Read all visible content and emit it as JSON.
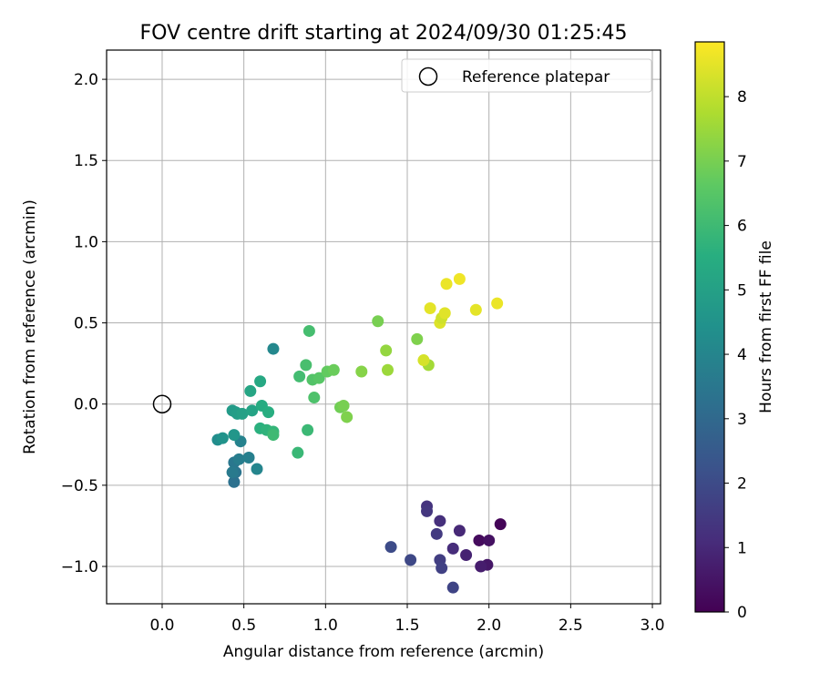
{
  "chart_data": {
    "type": "scatter",
    "title": "FOV centre drift starting at 2024/09/30 01:25:45",
    "xlabel": "Angular distance from reference (arcmin)",
    "ylabel": "Rotation from reference (arcmin)",
    "xlim": [
      -0.34,
      3.05
    ],
    "ylim": [
      -1.23,
      2.18
    ],
    "xticks": [
      "0.0",
      "0.5",
      "1.0",
      "1.5",
      "2.0",
      "2.5",
      "3.0"
    ],
    "yticks": [
      "−1.0",
      "−0.5",
      "0.0",
      "0.5",
      "1.0",
      "1.5",
      "2.0"
    ],
    "grid": true,
    "legend": {
      "placement": "top-right",
      "entries": [
        "Reference platepar"
      ]
    },
    "reference_point": {
      "x": 0.0,
      "y": 0.0,
      "label": "Reference platepar",
      "marker": "open-circle"
    },
    "colorbar": {
      "label": "Hours from first FF file",
      "colormap": "viridis",
      "range": [
        0,
        8.85
      ],
      "ticks": [
        "0",
        "1",
        "2",
        "3",
        "4",
        "5",
        "6",
        "7",
        "8"
      ]
    },
    "series": [
      {
        "points": [
          {
            "x": 2.07,
            "y": -0.74,
            "c": 0.1
          },
          {
            "x": 1.94,
            "y": -0.84,
            "c": 0.25
          },
          {
            "x": 2.0,
            "y": -0.84,
            "c": 0.4
          },
          {
            "x": 1.99,
            "y": -0.99,
            "c": 0.55
          },
          {
            "x": 1.95,
            "y": -1.0,
            "c": 0.7
          },
          {
            "x": 1.86,
            "y": -0.93,
            "c": 0.85
          },
          {
            "x": 1.82,
            "y": -0.78,
            "c": 1.0
          },
          {
            "x": 1.78,
            "y": -0.89,
            "c": 1.1
          },
          {
            "x": 1.7,
            "y": -0.72,
            "c": 1.2
          },
          {
            "x": 1.62,
            "y": -0.63,
            "c": 1.3
          },
          {
            "x": 1.62,
            "y": -0.66,
            "c": 1.4
          },
          {
            "x": 1.68,
            "y": -0.8,
            "c": 1.5
          },
          {
            "x": 1.7,
            "y": -0.96,
            "c": 1.6
          },
          {
            "x": 1.71,
            "y": -1.01,
            "c": 1.7
          },
          {
            "x": 1.78,
            "y": -1.13,
            "c": 1.8
          },
          {
            "x": 1.52,
            "y": -0.96,
            "c": 1.9
          },
          {
            "x": 1.4,
            "y": -0.88,
            "c": 2.0
          },
          {
            "x": 0.44,
            "y": -0.48,
            "c": 3.3
          },
          {
            "x": 0.45,
            "y": -0.42,
            "c": 3.4
          },
          {
            "x": 0.44,
            "y": -0.36,
            "c": 3.5
          },
          {
            "x": 0.43,
            "y": -0.42,
            "c": 3.6
          },
          {
            "x": 0.47,
            "y": -0.34,
            "c": 3.7
          },
          {
            "x": 0.53,
            "y": -0.33,
            "c": 3.8
          },
          {
            "x": 0.48,
            "y": -0.23,
            "c": 3.9
          },
          {
            "x": 0.58,
            "y": -0.4,
            "c": 4.0
          },
          {
            "x": 0.68,
            "y": 0.34,
            "c": 4.1
          },
          {
            "x": 0.34,
            "y": -0.22,
            "c": 4.3
          },
          {
            "x": 0.37,
            "y": -0.21,
            "c": 4.5
          },
          {
            "x": 0.44,
            "y": -0.19,
            "c": 4.6
          },
          {
            "x": 0.45,
            "y": -0.05,
            "c": 4.7
          },
          {
            "x": 0.43,
            "y": -0.04,
            "c": 4.8
          },
          {
            "x": 0.46,
            "y": -0.06,
            "c": 4.9
          },
          {
            "x": 0.49,
            "y": -0.06,
            "c": 5.0
          },
          {
            "x": 0.55,
            "y": -0.04,
            "c": 5.1
          },
          {
            "x": 0.54,
            "y": 0.08,
            "c": 5.2
          },
          {
            "x": 0.6,
            "y": 0.14,
            "c": 5.3
          },
          {
            "x": 0.61,
            "y": -0.01,
            "c": 5.4
          },
          {
            "x": 0.65,
            "y": -0.05,
            "c": 5.5
          },
          {
            "x": 0.6,
            "y": -0.15,
            "c": 5.6
          },
          {
            "x": 0.64,
            "y": -0.16,
            "c": 5.7
          },
          {
            "x": 0.68,
            "y": -0.17,
            "c": 5.8
          },
          {
            "x": 0.68,
            "y": -0.19,
            "c": 6.0
          },
          {
            "x": 0.83,
            "y": -0.3,
            "c": 5.9
          },
          {
            "x": 0.89,
            "y": -0.16,
            "c": 5.95
          },
          {
            "x": 0.84,
            "y": 0.17,
            "c": 6.1
          },
          {
            "x": 0.88,
            "y": 0.24,
            "c": 6.2
          },
          {
            "x": 0.9,
            "y": 0.45,
            "c": 6.15
          },
          {
            "x": 0.93,
            "y": 0.04,
            "c": 6.3
          },
          {
            "x": 0.92,
            "y": 0.15,
            "c": 6.4
          },
          {
            "x": 0.96,
            "y": 0.16,
            "c": 6.5
          },
          {
            "x": 1.01,
            "y": 0.2,
            "c": 6.7
          },
          {
            "x": 1.05,
            "y": 0.21,
            "c": 6.8
          },
          {
            "x": 1.09,
            "y": -0.02,
            "c": 6.9
          },
          {
            "x": 1.11,
            "y": -0.01,
            "c": 7.0
          },
          {
            "x": 1.13,
            "y": -0.08,
            "c": 7.1
          },
          {
            "x": 1.22,
            "y": 0.2,
            "c": 7.2
          },
          {
            "x": 1.32,
            "y": 0.51,
            "c": 7.0
          },
          {
            "x": 1.37,
            "y": 0.33,
            "c": 7.4
          },
          {
            "x": 1.38,
            "y": 0.21,
            "c": 7.5
          },
          {
            "x": 1.56,
            "y": 0.4,
            "c": 7.1
          },
          {
            "x": 1.63,
            "y": 0.24,
            "c": 7.6
          },
          {
            "x": 1.6,
            "y": 0.27,
            "c": 8.3
          },
          {
            "x": 1.64,
            "y": 0.59,
            "c": 8.5
          },
          {
            "x": 1.7,
            "y": 0.5,
            "c": 8.4
          },
          {
            "x": 1.71,
            "y": 0.53,
            "c": 8.2
          },
          {
            "x": 1.73,
            "y": 0.56,
            "c": 8.45
          },
          {
            "x": 1.74,
            "y": 0.74,
            "c": 8.6
          },
          {
            "x": 1.82,
            "y": 0.77,
            "c": 8.65
          },
          {
            "x": 1.92,
            "y": 0.58,
            "c": 8.5
          },
          {
            "x": 2.05,
            "y": 0.62,
            "c": 8.6
          }
        ]
      }
    ]
  }
}
